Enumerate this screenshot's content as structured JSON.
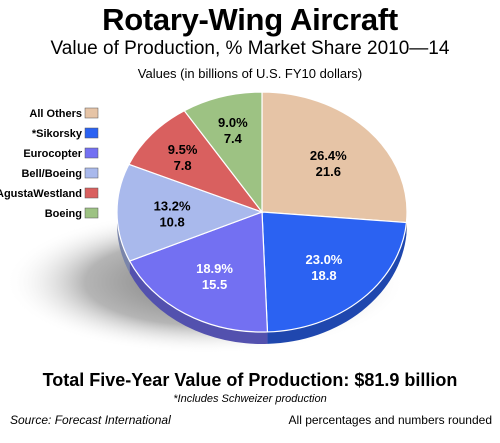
{
  "chart_data": {
    "type": "pie",
    "title": "Rotary-Wing Aircraft",
    "subtitle": "Value of Production, % Market Share 2010—14",
    "units_note": "Values (in billions of U.S. FY10 dollars)",
    "slices": [
      {
        "label": "All Others",
        "percent": 26.4,
        "value": 21.6,
        "percent_text": "26.4%",
        "value_text": "21.6",
        "color": "#e6c4a6",
        "label_color": "#000000"
      },
      {
        "label": "*Sikorsky",
        "percent": 23.0,
        "value": 18.8,
        "percent_text": "23.0%",
        "value_text": "18.8",
        "color": "#2b62f2",
        "label_color": "#ffffff"
      },
      {
        "label": "Eurocopter",
        "percent": 18.9,
        "value": 15.5,
        "percent_text": "18.9%",
        "value_text": "15.5",
        "color": "#7370f2",
        "label_color": "#ffffff"
      },
      {
        "label": "Bell/Boeing",
        "percent": 13.2,
        "value": 10.8,
        "percent_text": "13.2%",
        "value_text": "10.8",
        "color": "#a9b9ec",
        "label_color": "#000000"
      },
      {
        "label": "AgustaWestland",
        "percent": 9.5,
        "value": 7.8,
        "percent_text": "9.5%",
        "value_text": "7.8",
        "color": "#d9605f",
        "label_color": "#000000"
      },
      {
        "label": "Boeing",
        "percent": 9.0,
        "value": 7.4,
        "percent_text": "9.0%",
        "value_text": "7.4",
        "color": "#9dc283",
        "label_color": "#000000"
      }
    ],
    "legend_position": "left",
    "total_text": "Total Five-Year Value of Production: $81.9 billion",
    "footnote": "*Includes Schweizer production",
    "source": "Source:  Forecast International",
    "rounding_note": "All percentages and numbers rounded"
  }
}
